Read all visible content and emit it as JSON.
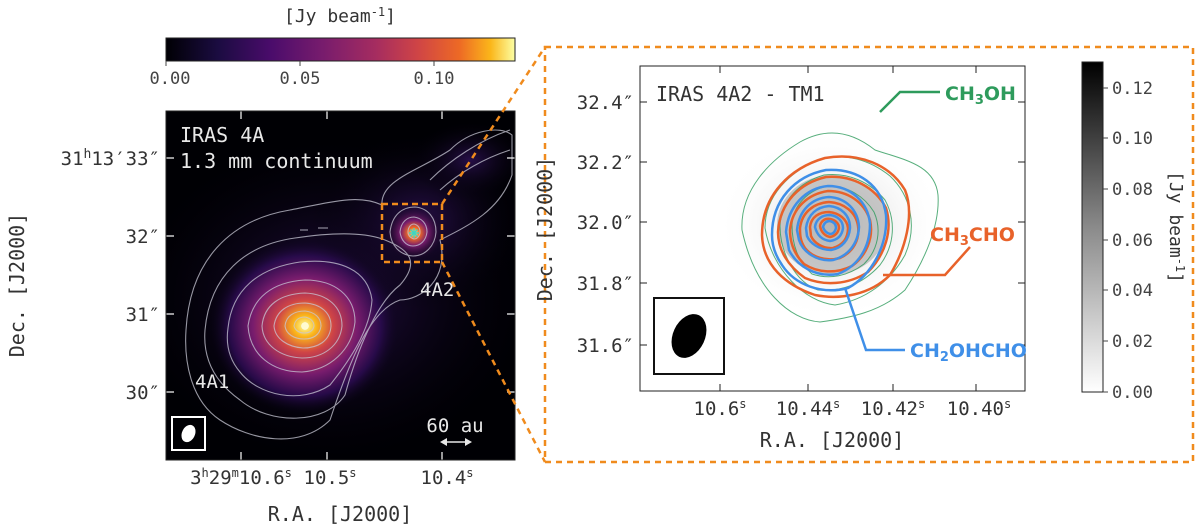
{
  "chart_data": [
    {
      "type": "heatmap",
      "panel": "left",
      "annotation": [
        "IRAS 4A",
        "1.3 mm continuum"
      ],
      "xlabel": "R.A. [J2000]",
      "ylabel": "Dec. [J2000]",
      "x_ticks": [
        {
          "pre": "3",
          "sup1": "h",
          "mid": "29",
          "sup2": "m",
          "main": "10.6",
          "sup3": "s"
        },
        {
          "main": "10.5",
          "sup3": "s"
        },
        {
          "main": "10.4",
          "sup3": "s"
        }
      ],
      "y_ticks": [
        "31′′13′33″",
        "32″",
        "31″",
        "30″"
      ],
      "sources": [
        {
          "label": "4A1",
          "peak": 0.13
        },
        {
          "label": "4A2",
          "peak": 0.12
        }
      ],
      "scalebar": "60 au",
      "colorbar": {
        "label": "[Jy beam",
        "label_sup": "-1",
        "label_end": "]",
        "ticks": [
          "0.00",
          "0.05",
          "0.10"
        ],
        "range": [
          0.0,
          0.13
        ],
        "colormap": "inferno"
      },
      "contour_color": "#c9c9d6"
    },
    {
      "type": "heatmap",
      "panel": "right",
      "annotation": "IRAS 4A2 - TM1",
      "xlabel": "R.A. [J2000]",
      "ylabel": "Dec. [J2000]",
      "x_ticks": [
        "10.6",
        "10.44",
        "10.42",
        "10.40"
      ],
      "x_tick_sup": "s",
      "y_ticks": [
        "32.4″",
        "32.2″",
        "32.0″",
        "31.8″",
        "31.6″"
      ],
      "series": [
        {
          "name_parts": [
            "CH",
            "3",
            "OH"
          ],
          "color": "#2e9b5c"
        },
        {
          "name_parts": [
            "CH",
            "3",
            "CHO"
          ],
          "color": "#e8622a"
        },
        {
          "name_parts": [
            "CH",
            "2",
            "OHCHO"
          ],
          "color": "#3f8fe8"
        }
      ],
      "colorbar": {
        "label": "[Jy beam",
        "label_sup": "-1",
        "label_end": "]",
        "ticks": [
          "0.00",
          "0.02",
          "0.04",
          "0.06",
          "0.08",
          "0.10",
          "0.12"
        ],
        "range": [
          0.0,
          0.13
        ],
        "colormap": "gray_r"
      },
      "zoom_box_color": "#f08b1d"
    }
  ]
}
